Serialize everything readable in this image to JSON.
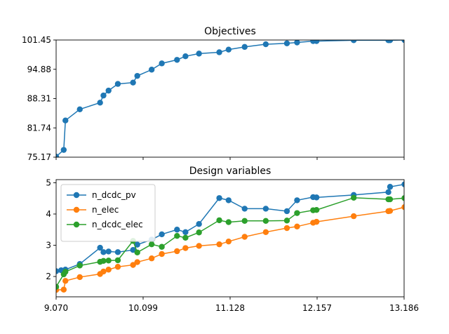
{
  "chart_data": [
    {
      "type": "line",
      "title": "Objectives",
      "xlim": [
        9.07,
        13.186
      ],
      "ylim": [
        75.17,
        101.45
      ],
      "yticks": [
        "75.17",
        "81.74",
        "88.31",
        "94.88",
        "101.45"
      ],
      "xticks": [
        "9.070",
        "10.099",
        "11.128",
        "12.157",
        "13.186"
      ],
      "show_xtick_labels": false,
      "grid": false,
      "series": [
        {
          "color": "#1f77b4",
          "x": [
            9.07,
            9.16,
            9.18,
            9.35,
            9.59,
            9.63,
            9.69,
            9.8,
            9.98,
            10.03,
            10.2,
            10.32,
            10.5,
            10.6,
            10.76,
            11.0,
            11.11,
            11.3,
            11.55,
            11.8,
            11.92,
            12.11,
            12.15,
            12.59,
            13.0,
            13.02,
            13.19
          ],
          "y": [
            75.3,
            76.8,
            83.4,
            85.9,
            87.4,
            89.0,
            90.1,
            91.6,
            91.9,
            93.4,
            94.8,
            96.2,
            97.0,
            97.8,
            98.4,
            98.7,
            99.3,
            99.9,
            100.5,
            100.7,
            100.9,
            101.2,
            101.2,
            101.4,
            101.4,
            101.4,
            101.45
          ]
        }
      ]
    },
    {
      "type": "line",
      "title": "Design variables",
      "xlim": [
        9.07,
        13.186
      ],
      "ylim": [
        1.35,
        5.1
      ],
      "yticks": [
        "2",
        "3",
        "4",
        "5"
      ],
      "xticks": [
        "9.070",
        "10.099",
        "11.128",
        "12.157",
        "13.186"
      ],
      "legend": "upper-left",
      "grid": false,
      "series": [
        {
          "name": "n_dcdc_pv",
          "color": "#1f77b4",
          "x": [
            9.07,
            9.13,
            9.18,
            9.35,
            9.59,
            9.63,
            9.69,
            9.8,
            9.98,
            10.03,
            10.2,
            10.32,
            10.5,
            10.6,
            10.76,
            11.0,
            11.11,
            11.3,
            11.55,
            11.8,
            11.92,
            12.11,
            12.15,
            12.59,
            13.0,
            13.02,
            13.19
          ],
          "y": [
            2.17,
            2.2,
            2.22,
            2.4,
            2.92,
            2.78,
            2.8,
            2.78,
            2.85,
            3.02,
            3.18,
            3.35,
            3.5,
            3.42,
            3.68,
            4.51,
            4.44,
            4.17,
            4.17,
            4.09,
            4.44,
            4.54,
            4.53,
            4.61,
            4.7,
            4.87,
            4.95
          ]
        },
        {
          "name": "n_elec",
          "color": "#ff7f0e",
          "x": [
            9.07,
            9.16,
            9.18,
            9.35,
            9.59,
            9.63,
            9.69,
            9.8,
            9.98,
            10.03,
            10.2,
            10.32,
            10.5,
            10.6,
            10.76,
            11.0,
            11.11,
            11.3,
            11.55,
            11.8,
            11.92,
            12.11,
            12.15,
            12.59,
            13.0,
            13.02,
            13.19
          ],
          "y": [
            1.57,
            1.58,
            1.86,
            1.98,
            2.08,
            2.16,
            2.22,
            2.31,
            2.37,
            2.46,
            2.58,
            2.72,
            2.81,
            2.91,
            2.98,
            3.03,
            3.12,
            3.27,
            3.42,
            3.55,
            3.6,
            3.72,
            3.75,
            3.93,
            4.09,
            4.1,
            4.22
          ]
        },
        {
          "name": "n_dcdc_elec",
          "color": "#2ca02c",
          "x": [
            9.07,
            9.16,
            9.18,
            9.35,
            9.59,
            9.63,
            9.69,
            9.8,
            9.98,
            10.03,
            10.2,
            10.32,
            10.5,
            10.6,
            10.76,
            11.0,
            11.11,
            11.3,
            11.55,
            11.8,
            11.92,
            12.11,
            12.15,
            12.59,
            13.0,
            13.02,
            13.19
          ],
          "y": [
            1.67,
            2.07,
            2.15,
            2.35,
            2.47,
            2.5,
            2.51,
            2.52,
            3.14,
            2.77,
            3.03,
            2.95,
            3.3,
            3.24,
            3.41,
            3.8,
            3.74,
            3.78,
            3.78,
            3.79,
            4.03,
            4.12,
            4.13,
            4.52,
            4.47,
            4.47,
            4.51
          ]
        }
      ]
    }
  ]
}
